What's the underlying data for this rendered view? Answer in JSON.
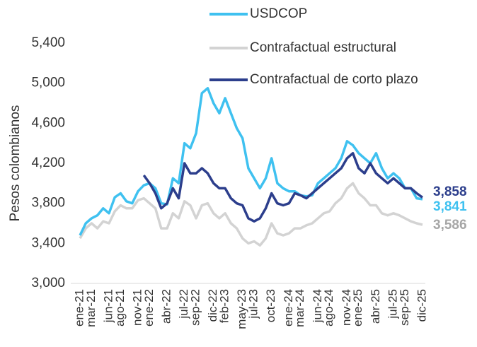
{
  "chart_data": {
    "type": "line",
    "ylabel": "Pesos colombianos",
    "categories": [
      "ene-21",
      null,
      "mar-21",
      null,
      null,
      "jun-21",
      null,
      "ago-21",
      null,
      null,
      "nov-21",
      null,
      "ene-22",
      null,
      null,
      "abr-22",
      null,
      null,
      "jul-22",
      null,
      "sep-22",
      null,
      null,
      "dic-22",
      null,
      "feb-23",
      null,
      null,
      "may-23",
      null,
      "jul-23",
      null,
      null,
      "oct-23",
      null,
      null,
      "ene-24",
      null,
      "mar-24",
      null,
      null,
      "jun-24",
      null,
      "ago-24",
      null,
      null,
      "nov-24",
      null,
      "ene-25",
      null,
      null,
      "abr-25",
      null,
      null,
      "jul-25",
      null,
      "sep-25",
      null,
      null,
      "dic-25"
    ],
    "series": [
      {
        "name": "USDCOP",
        "color": "#3fc1f0",
        "values": [
          3480,
          3600,
          3650,
          3680,
          3750,
          3700,
          3860,
          3900,
          3820,
          3800,
          3920,
          3980,
          4000,
          3950,
          3800,
          3790,
          4050,
          4000,
          4400,
          4350,
          4500,
          4900,
          4950,
          4800,
          4700,
          4850,
          4700,
          4550,
          4450,
          4150,
          4050,
          3950,
          4050,
          4250,
          4000,
          3950,
          3920,
          3920,
          3880,
          3870,
          3880,
          4000,
          4050,
          4100,
          4150,
          4250,
          4420,
          4380,
          4300,
          4250,
          4200,
          4300,
          4150,
          4050,
          4100,
          4050,
          3950,
          3950,
          3850,
          3841
        ],
        "value_labels": [
          null,
          null,
          null,
          null,
          null,
          null,
          null,
          null,
          null,
          null,
          null,
          null,
          null,
          null,
          null,
          null,
          null,
          null,
          null,
          null,
          null,
          null,
          null,
          null,
          null,
          null,
          null,
          null,
          null,
          null,
          null,
          null,
          null,
          null,
          null,
          null,
          null,
          null,
          null,
          null,
          null,
          null,
          null,
          null,
          null,
          null,
          null,
          null,
          null,
          null,
          null,
          null,
          null,
          null,
          null,
          null,
          null,
          null,
          null,
          "3,841"
        ]
      },
      {
        "name": "Contrafactual estructural",
        "color": "#d3d3d3",
        "values": [
          3450,
          3550,
          3600,
          3550,
          3620,
          3600,
          3720,
          3780,
          3750,
          3750,
          3830,
          3850,
          3800,
          3750,
          3550,
          3550,
          3700,
          3650,
          3820,
          3780,
          3650,
          3780,
          3800,
          3700,
          3650,
          3700,
          3600,
          3550,
          3450,
          3400,
          3420,
          3380,
          3450,
          3600,
          3500,
          3480,
          3500,
          3550,
          3550,
          3580,
          3600,
          3650,
          3700,
          3720,
          3800,
          3850,
          3950,
          4000,
          3900,
          3850,
          3780,
          3780,
          3700,
          3680,
          3700,
          3680,
          3650,
          3620,
          3600,
          3586
        ],
        "value_labels": [
          null,
          null,
          null,
          null,
          null,
          null,
          null,
          null,
          null,
          null,
          null,
          null,
          null,
          null,
          null,
          null,
          null,
          null,
          null,
          null,
          null,
          null,
          null,
          null,
          null,
          null,
          null,
          null,
          null,
          null,
          null,
          null,
          null,
          null,
          null,
          null,
          null,
          null,
          null,
          null,
          null,
          null,
          null,
          null,
          null,
          null,
          null,
          null,
          null,
          null,
          null,
          null,
          null,
          null,
          null,
          null,
          null,
          null,
          null,
          "3,586"
        ]
      },
      {
        "name": "Contrafactual de corto plazo",
        "color": "#2c3e8c",
        "values": [
          null,
          null,
          null,
          null,
          null,
          null,
          null,
          null,
          null,
          null,
          null,
          4080,
          4000,
          3900,
          3750,
          3800,
          3950,
          3850,
          4200,
          4100,
          4100,
          4150,
          4100,
          4000,
          3950,
          3950,
          3850,
          3800,
          3780,
          3650,
          3620,
          3650,
          3750,
          3900,
          3800,
          3780,
          3800,
          3900,
          3880,
          3850,
          3900,
          3950,
          4000,
          4050,
          4100,
          4150,
          4250,
          4300,
          4150,
          4100,
          4200,
          4100,
          4050,
          4000,
          4050,
          4000,
          3950,
          3950,
          3900,
          3858
        ],
        "value_labels": [
          null,
          null,
          null,
          null,
          null,
          null,
          null,
          null,
          null,
          null,
          null,
          null,
          null,
          null,
          null,
          null,
          null,
          null,
          null,
          null,
          null,
          null,
          null,
          null,
          null,
          null,
          null,
          null,
          null,
          null,
          null,
          null,
          null,
          null,
          null,
          null,
          null,
          null,
          null,
          null,
          null,
          null,
          null,
          null,
          null,
          null,
          null,
          null,
          null,
          null,
          null,
          null,
          null,
          null,
          null,
          null,
          null,
          null,
          null,
          "3,858"
        ]
      }
    ],
    "ylim": [
      3000,
      5400
    ],
    "yticks": [
      {
        "value": 3000,
        "label": "3,000"
      },
      {
        "value": 3400,
        "label": "3,400"
      },
      {
        "value": 3800,
        "label": "3,800"
      },
      {
        "value": 4200,
        "label": "4,200"
      },
      {
        "value": 4600,
        "label": "4,600"
      },
      {
        "value": 5000,
        "label": "5,000"
      },
      {
        "value": 5400,
        "label": "5,400"
      }
    ],
    "grid": false,
    "legend": "top"
  }
}
